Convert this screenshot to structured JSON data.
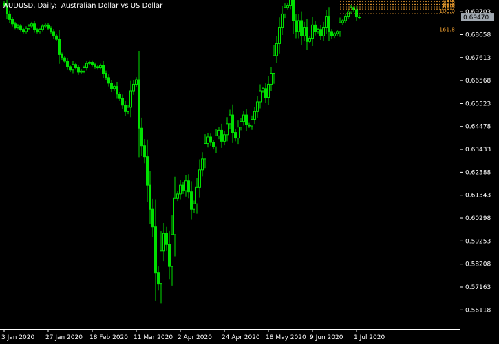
{
  "window": {
    "title": "AUDUSD, Daily:  Australian Dollar vs US Dollar"
  },
  "colors": {
    "background": "#000000",
    "candle": "#00e000",
    "axis": "#ffffff",
    "fib": "#f0a030",
    "current_price_line": "#a0a8b0"
  },
  "chart_data": {
    "type": "candlestick",
    "title": "AUDUSD, Daily:  Australian Dollar vs US Dollar",
    "ylim": [
      0.5525,
      0.7024
    ],
    "y_ticks": [
      "0.69703",
      "0.68658",
      "0.67613",
      "0.66568",
      "0.65523",
      "0.64478",
      "0.63433",
      "0.62388",
      "0.61343",
      "0.60298",
      "0.59253",
      "0.58208",
      "0.57163",
      "0.56118"
    ],
    "y_tick_values": [
      0.69703,
      0.68658,
      0.67613,
      0.66568,
      0.65523,
      0.64478,
      0.63433,
      0.62388,
      0.61343,
      0.60298,
      0.59253,
      0.58208,
      0.57163,
      0.56118
    ],
    "x_ticks": [
      "3 Jan 2020",
      "27 Jan 2020",
      "18 Feb 2020",
      "11 Mar 2020",
      "2 Apr 2020",
      "24 Apr 2020",
      "18 May 2020",
      "9 Jun 2020",
      "1 Jul 2020"
    ],
    "x_tick_index": [
      0,
      16,
      32,
      48,
      64,
      80,
      96,
      112,
      128
    ],
    "current_price": 0.6947,
    "current_price_label": "0.69470",
    "fib_levels": [
      {
        "label": "0.0",
        "value": 0.7017
      },
      {
        "label": "23.6",
        "value": 0.7004
      },
      {
        "label": "38.2",
        "value": 0.6996
      },
      {
        "label": "50.0",
        "value": 0.6989
      },
      {
        "label": "61.8",
        "value": 0.6983
      },
      {
        "label": "100.0",
        "value": 0.6961
      },
      {
        "label": "161.8",
        "value": 0.6878
      }
    ],
    "closes": [
      0.7,
      0.696,
      0.6935,
      0.6915,
      0.69,
      0.6905,
      0.689,
      0.688,
      0.6895,
      0.6905,
      0.6915,
      0.689,
      0.688,
      0.689,
      0.6905,
      0.691,
      0.6895,
      0.688,
      0.686,
      0.6845,
      0.6775,
      0.676,
      0.6745,
      0.672,
      0.6705,
      0.673,
      0.6715,
      0.6695,
      0.67,
      0.6715,
      0.6735,
      0.674,
      0.673,
      0.672,
      0.6715,
      0.6725,
      0.669,
      0.667,
      0.6645,
      0.662,
      0.663,
      0.6595,
      0.6575,
      0.6545,
      0.6515,
      0.6535,
      0.661,
      0.664,
      0.666,
      0.644,
      0.636,
      0.631,
      0.618,
      0.607,
      0.599,
      0.578,
      0.573,
      0.588,
      0.596,
      0.591,
      0.581,
      0.5955,
      0.612,
      0.614,
      0.618,
      0.6155,
      0.62,
      0.615,
      0.607,
      0.6095,
      0.617,
      0.625,
      0.63,
      0.637,
      0.64,
      0.6375,
      0.6355,
      0.6405,
      0.643,
      0.638,
      0.641,
      0.646,
      0.65,
      0.642,
      0.6395,
      0.6445,
      0.647,
      0.65,
      0.6455,
      0.645,
      0.648,
      0.6515,
      0.656,
      0.661,
      0.662,
      0.658,
      0.664,
      0.669,
      0.677,
      0.6825,
      0.69,
      0.696,
      0.699,
      0.7,
      0.703,
      0.693,
      0.688,
      0.693,
      0.686,
      0.69,
      0.6835,
      0.685,
      0.691,
      0.688,
      0.689,
      0.686,
      0.69,
      0.695,
      0.688,
      0.686,
      0.687,
      0.688,
      0.692,
      0.693,
      0.695,
      0.697,
      0.699,
      0.698,
      0.6947,
      0.6947
    ]
  }
}
